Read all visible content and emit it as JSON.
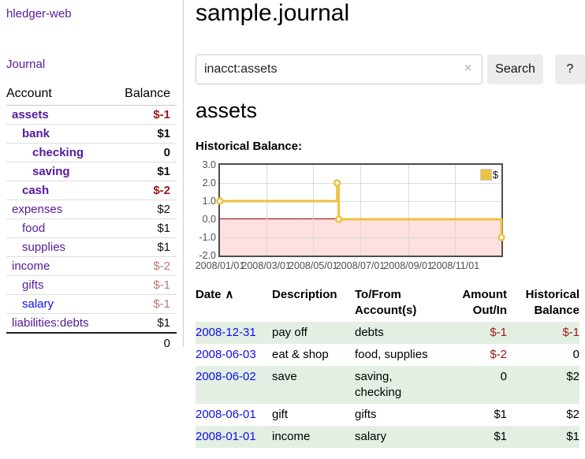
{
  "colors": {
    "purple_link": "#551a9b",
    "blue_link": "#0d0dee",
    "negative_strong": "#9e1616",
    "negative_soft": "#bd7878",
    "row_highlight_green": "#e3efe3",
    "button_bg": "#ececec"
  },
  "sidebar": {
    "brand": "hledger-web",
    "nav": "Journal",
    "table": {
      "col_account": "Account",
      "col_balance": "Balance",
      "accounts": [
        {
          "name": "assets",
          "balance": "$-1",
          "depth": 1,
          "bold": true,
          "neg": "strong",
          "link": "purple"
        },
        {
          "name": "bank",
          "balance": "$1",
          "depth": 2,
          "bold": true,
          "neg": "",
          "link": "purple"
        },
        {
          "name": "checking",
          "balance": "0",
          "depth": 3,
          "bold": true,
          "neg": "",
          "link": "purple"
        },
        {
          "name": "saving",
          "balance": "$1",
          "depth": 3,
          "bold": true,
          "neg": "",
          "link": "purple"
        },
        {
          "name": "cash",
          "balance": "$-2",
          "depth": 2,
          "bold": true,
          "neg": "strong",
          "link": "purple"
        },
        {
          "name": "expenses",
          "balance": "$2",
          "depth": 1,
          "bold": false,
          "neg": "",
          "link": "purple"
        },
        {
          "name": "food",
          "balance": "$1",
          "depth": 2,
          "bold": false,
          "neg": "",
          "link": "purple"
        },
        {
          "name": "supplies",
          "balance": "$1",
          "depth": 2,
          "bold": false,
          "neg": "",
          "link": "purple"
        },
        {
          "name": "income",
          "balance": "$-2",
          "depth": 1,
          "bold": false,
          "neg": "soft",
          "link": "purple"
        },
        {
          "name": "gifts",
          "balance": "$-1",
          "depth": 2,
          "bold": false,
          "neg": "soft",
          "link": "purple"
        },
        {
          "name": "salary",
          "balance": "$-1",
          "depth": 2,
          "bold": false,
          "neg": "soft",
          "link": "blue"
        },
        {
          "name": "liabilities:debts",
          "balance": "$1",
          "depth": 1,
          "bold": false,
          "neg": "",
          "link": "purple"
        }
      ],
      "total": "0"
    }
  },
  "main": {
    "title": "sample.journal",
    "search": {
      "value": "inacct:assets",
      "clear_icon": "×",
      "search_button": "Search",
      "help_button": "?"
    },
    "account_heading": "assets",
    "chart_heading": "Historical Balance:"
  },
  "chart_data": {
    "type": "line",
    "step": true,
    "title": "Historical Balance",
    "series": [
      {
        "name": "$",
        "color": "#edc240",
        "points": [
          {
            "x": "2008-01-01",
            "y": 1
          },
          {
            "x": "2008-06-01",
            "y": 2
          },
          {
            "x": "2008-06-03",
            "y": 0
          },
          {
            "x": "2008-12-31",
            "y": -1
          }
        ]
      }
    ],
    "x_range": [
      "2008-01-01",
      "2008-12-31"
    ],
    "ylim": [
      -2,
      3
    ],
    "y_ticks": [
      {
        "v": 3,
        "label": "3.0"
      },
      {
        "v": 2,
        "label": "2.0"
      },
      {
        "v": 1,
        "label": "1.0"
      },
      {
        "v": 0,
        "label": "0.0"
      },
      {
        "v": -1,
        "label": "-1.0"
      },
      {
        "v": -2,
        "label": "-2.0"
      }
    ],
    "x_ticks": [
      {
        "d": "2008-01-01",
        "label": "2008/01/01"
      },
      {
        "d": "2008-03-01",
        "label": "2008/03/01"
      },
      {
        "d": "2008-05-01",
        "label": "2008/05/01"
      },
      {
        "d": "2008-07-01",
        "label": "2008/07/01"
      },
      {
        "d": "2008-09-01",
        "label": "2008/09/01"
      },
      {
        "d": "2008-11-01",
        "label": "2008/11/01"
      }
    ],
    "legend": {
      "label": "$",
      "position": "top-right"
    },
    "grid": true,
    "negative_region_color": "rgba(255,0,0,0.12)",
    "zero_line_color": "#a40000"
  },
  "register": {
    "col_date": "Date",
    "sort_indicator": "∧",
    "col_description": "Description",
    "col_accounts": "To/From Account(s)",
    "col_amount": "Amount Out/In",
    "col_balance": "Historical Balance",
    "rows": [
      {
        "date": "2008-12-31",
        "description": "pay off",
        "accounts": "debts",
        "amount": "$-1",
        "balance": "$-1",
        "amount_negative": true,
        "balance_negative": true,
        "highlight": true
      },
      {
        "date": "2008-06-03",
        "description": "eat & shop",
        "accounts": "food, supplies",
        "amount": "$-2",
        "balance": "0",
        "amount_negative": true,
        "balance_negative": false,
        "highlight": false
      },
      {
        "date": "2008-06-02",
        "description": "save",
        "accounts": "saving, checking",
        "amount": "0",
        "balance": "$2",
        "amount_negative": false,
        "balance_negative": false,
        "highlight": true
      },
      {
        "date": "2008-06-01",
        "description": "gift",
        "accounts": "gifts",
        "amount": "$1",
        "balance": "$2",
        "amount_negative": false,
        "balance_negative": false,
        "highlight": false
      },
      {
        "date": "2008-01-01",
        "description": "income",
        "accounts": "salary",
        "amount": "$1",
        "balance": "$1",
        "amount_negative": false,
        "balance_negative": false,
        "highlight": true
      }
    ]
  }
}
